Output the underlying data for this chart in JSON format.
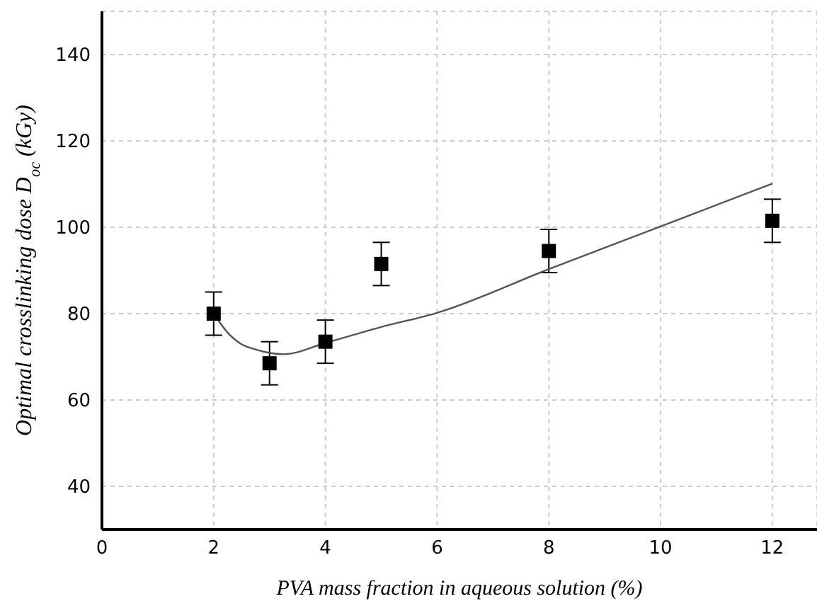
{
  "chart_data": {
    "type": "scatter",
    "xlabel": "PVA mass fraction in aqueous solution (%)",
    "ylabel": "Optimal crosslinking dose D$_{oc}$ (kGy)",
    "xlim": [
      0,
      12.8
    ],
    "xticks": [
      0,
      2,
      4,
      6,
      8,
      10,
      12
    ],
    "ylim": [
      30,
      150
    ],
    "yticks": [
      40,
      60,
      80,
      100,
      120,
      140
    ],
    "grid": true,
    "legend": false,
    "series": [
      {
        "color": "#000000",
        "marker": "square",
        "x": [
          2,
          3,
          4,
          5,
          8,
          12
        ],
        "values": [
          80,
          68.5,
          73.5,
          91.5,
          94.5,
          101.5
        ],
        "errors": [
          5,
          5,
          5,
          5,
          5,
          5
        ]
      },
      {
        "type": "line",
        "color": "#555555",
        "marker": "none",
        "line_style": "solid",
        "x": [
          2,
          2.25,
          2.5,
          2.75,
          3,
          3.25,
          4,
          5,
          6,
          8,
          10,
          12
        ],
        "values": [
          80,
          75.6,
          72.9,
          71.7,
          70.9,
          70.6,
          73.2,
          76.9,
          80.2,
          90.3,
          100.2,
          110.1
        ]
      }
    ]
  }
}
